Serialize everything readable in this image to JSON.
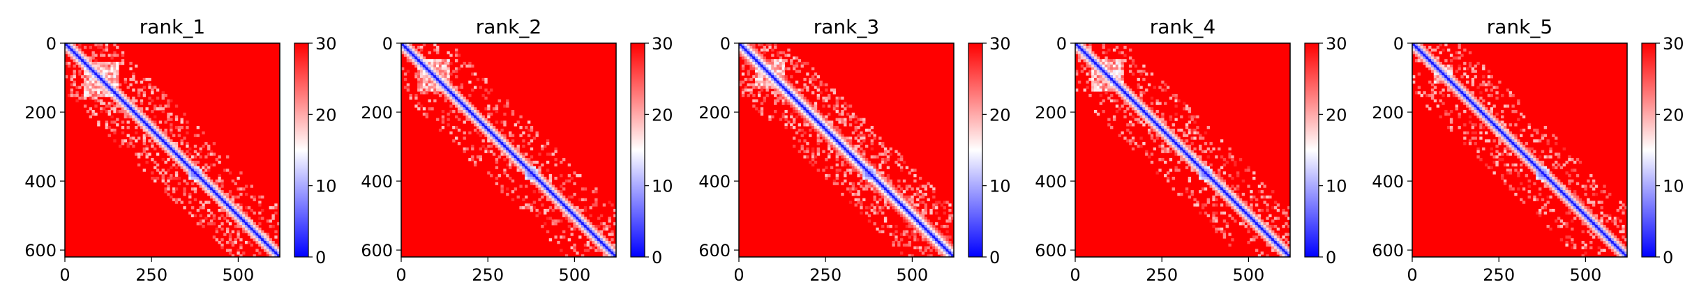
{
  "chart_data": [
    {
      "type": "heatmap",
      "title": "rank_1",
      "xlim": [
        0,
        620
      ],
      "ylim": [
        620,
        0
      ],
      "x_ticks": [
        "0",
        "250",
        "500"
      ],
      "y_ticks": [
        "0",
        "200",
        "400",
        "600"
      ],
      "colorbar": {
        "range": [
          0,
          30
        ],
        "ticks": [
          "0",
          "10",
          "20",
          "30"
        ],
        "colors": [
          "#0000ff",
          "#ffffff",
          "#ff0000"
        ]
      },
      "features": {
        "diagonal_width": 10,
        "block": [
          55,
          155
        ],
        "loops": [
          [
            375,
            378
          ]
        ],
        "speckle": 0.25
      }
    },
    {
      "type": "heatmap",
      "title": "rank_2",
      "xlim": [
        0,
        620
      ],
      "ylim": [
        620,
        0
      ],
      "x_ticks": [
        "0",
        "250",
        "500"
      ],
      "y_ticks": [
        "0",
        "200",
        "400",
        "600"
      ],
      "colorbar": {
        "range": [
          0,
          30
        ],
        "ticks": [
          "0",
          "10",
          "20",
          "30"
        ],
        "colors": [
          "#0000ff",
          "#ffffff",
          "#ff0000"
        ]
      },
      "features": {
        "diagonal_width": 10,
        "block": [
          50,
          140
        ],
        "loops": [
          [
            375,
            378
          ]
        ],
        "speckle": 0.2
      }
    },
    {
      "type": "heatmap",
      "title": "rank_3",
      "xlim": [
        0,
        620
      ],
      "ylim": [
        620,
        0
      ],
      "x_ticks": [
        "0",
        "250",
        "500"
      ],
      "y_ticks": [
        "0",
        "200",
        "400",
        "600"
      ],
      "colorbar": {
        "range": [
          0,
          30
        ],
        "ticks": [
          "0",
          "10",
          "20",
          "30"
        ],
        "colors": [
          "#0000ff",
          "#ffffff",
          "#ff0000"
        ]
      },
      "features": {
        "diagonal_width": 12,
        "block": [
          45,
          130
        ],
        "loops": [
          [
            375,
            378
          ]
        ],
        "speckle": 0.3
      }
    },
    {
      "type": "heatmap",
      "title": "rank_4",
      "xlim": [
        0,
        620
      ],
      "ylim": [
        620,
        0
      ],
      "x_ticks": [
        "0",
        "250",
        "500"
      ],
      "y_ticks": [
        "0",
        "200",
        "400",
        "600"
      ],
      "colorbar": {
        "range": [
          0,
          30
        ],
        "ticks": [
          "0",
          "10",
          "20",
          "30"
        ],
        "colors": [
          "#0000ff",
          "#ffffff",
          "#ff0000"
        ]
      },
      "features": {
        "diagonal_width": 10,
        "block": [
          50,
          140
        ],
        "loops": [
          [
            375,
            378
          ]
        ],
        "speckle": 0.22
      }
    },
    {
      "type": "heatmap",
      "title": "rank_5",
      "xlim": [
        0,
        620
      ],
      "ylim": [
        620,
        0
      ],
      "x_ticks": [
        "0",
        "250",
        "500"
      ],
      "y_ticks": [
        "0",
        "200",
        "400",
        "600"
      ],
      "colorbar": {
        "range": [
          0,
          30
        ],
        "ticks": [
          "0",
          "10",
          "20",
          "30"
        ],
        "colors": [
          "#0000ff",
          "#ffffff",
          "#ff0000"
        ]
      },
      "features": {
        "diagonal_width": 9,
        "block": [
          60,
          115
        ],
        "loops": [
          [
            375,
            378
          ]
        ],
        "speckle": 0.2
      }
    }
  ]
}
